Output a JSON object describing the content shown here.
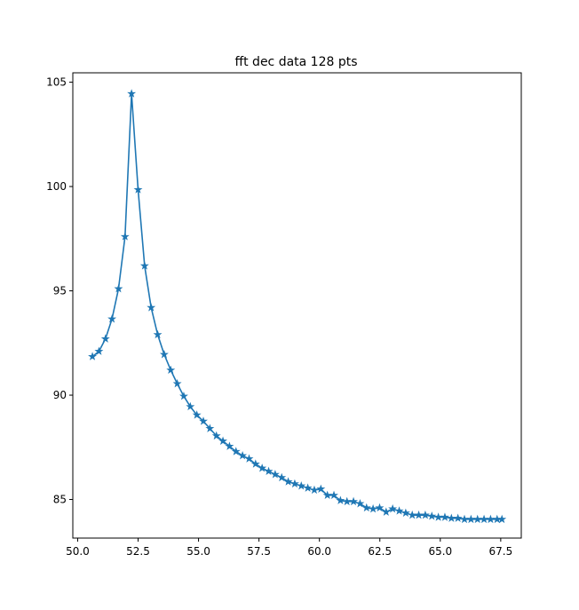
{
  "chart_data": {
    "type": "line",
    "title": "fft dec data 128 pts",
    "xlabel": "",
    "ylabel": "",
    "xlim": [
      49.8,
      68.35
    ],
    "ylim": [
      83.15,
      105.45
    ],
    "grid": false,
    "legend": "none",
    "marker": "star",
    "line_color": "#1f77b4",
    "x_ticks": [
      {
        "value": 50.0,
        "label": "50.0"
      },
      {
        "value": 52.5,
        "label": "52.5"
      },
      {
        "value": 55.0,
        "label": "55.0"
      },
      {
        "value": 57.5,
        "label": "57.5"
      },
      {
        "value": 60.0,
        "label": "60.0"
      },
      {
        "value": 62.5,
        "label": "62.5"
      },
      {
        "value": 65.0,
        "label": "65.0"
      },
      {
        "value": 67.5,
        "label": "67.5"
      }
    ],
    "y_ticks": [
      {
        "value": 85,
        "label": "85"
      },
      {
        "value": 90,
        "label": "90"
      },
      {
        "value": 95,
        "label": "95"
      },
      {
        "value": 100,
        "label": "100"
      },
      {
        "value": 105,
        "label": "105"
      }
    ],
    "series": [
      {
        "x": [
          50.61,
          50.88,
          51.15,
          51.42,
          51.69,
          51.96,
          52.23,
          52.5,
          52.77,
          53.04,
          53.31,
          53.58,
          53.85,
          54.12,
          54.39,
          54.66,
          54.93,
          55.2,
          55.47,
          55.74,
          56.01,
          56.28,
          56.55,
          56.82,
          57.09,
          57.36,
          57.63,
          57.9,
          58.17,
          58.44,
          58.71,
          58.98,
          59.25,
          59.52,
          59.79,
          60.06,
          60.33,
          60.6,
          60.87,
          61.14,
          61.41,
          61.68,
          61.95,
          62.22,
          62.49,
          62.76,
          63.03,
          63.3,
          63.57,
          63.84,
          64.11,
          64.38,
          64.65,
          64.92,
          65.19,
          65.46,
          65.73,
          66.0,
          66.27,
          66.54,
          66.81,
          67.08,
          67.35,
          67.55
        ],
        "values": [
          91.85,
          92.1,
          92.7,
          93.65,
          95.1,
          97.6,
          104.45,
          99.85,
          96.2,
          94.2,
          92.9,
          91.95,
          91.2,
          90.55,
          89.95,
          89.45,
          89.05,
          88.75,
          88.4,
          88.05,
          87.8,
          87.55,
          87.3,
          87.1,
          86.95,
          86.7,
          86.5,
          86.35,
          86.2,
          86.05,
          85.85,
          85.75,
          85.65,
          85.55,
          85.45,
          85.5,
          85.2,
          85.2,
          84.95,
          84.9,
          84.9,
          84.8,
          84.6,
          84.55,
          84.6,
          84.4,
          84.55,
          84.45,
          84.35,
          84.25,
          84.25,
          84.25,
          84.2,
          84.15,
          84.15,
          84.1,
          84.1,
          84.05,
          84.05,
          84.05,
          84.05,
          84.05,
          84.05,
          84.05
        ]
      }
    ]
  }
}
